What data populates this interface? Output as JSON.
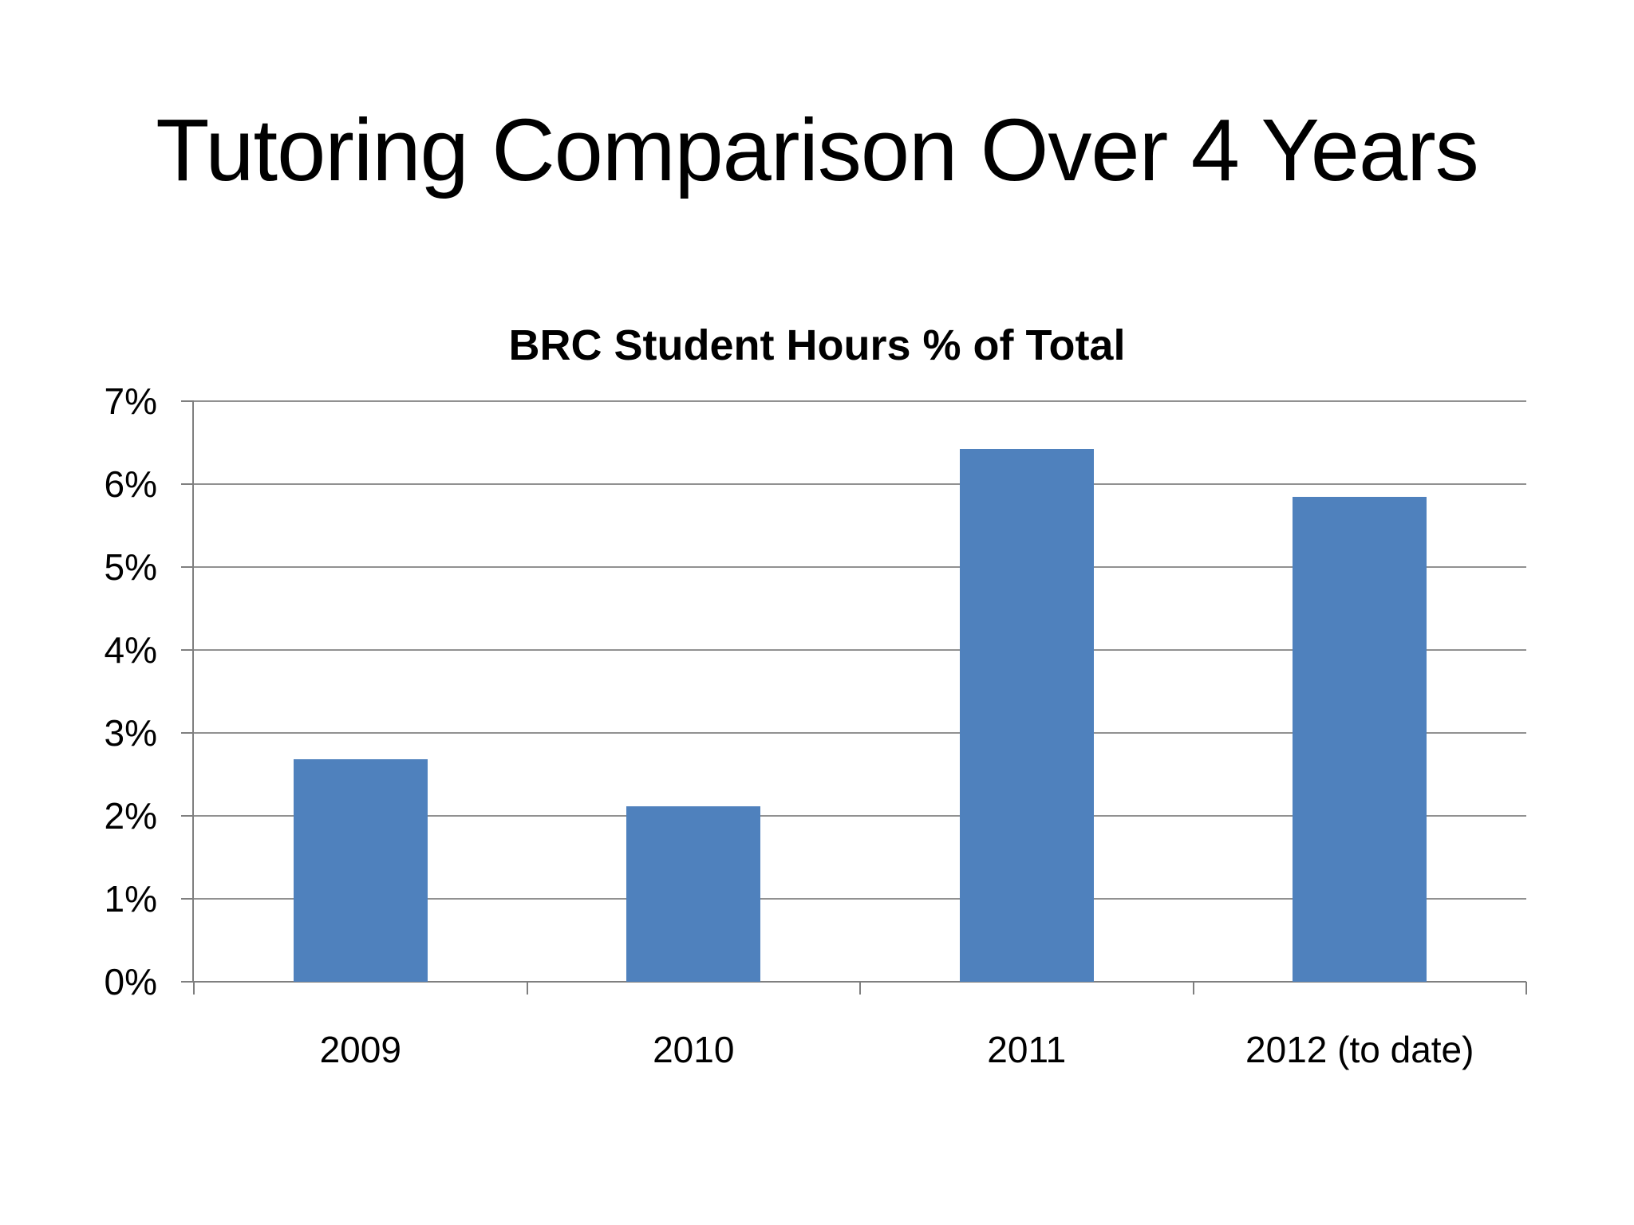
{
  "slide": {
    "title": "Tutoring Comparison Over 4 Years"
  },
  "chart_data": {
    "type": "bar",
    "title": "BRC Student Hours % of Total",
    "categories": [
      "2009",
      "2010",
      "2011",
      "2012 (to date)"
    ],
    "values": [
      2.68,
      2.12,
      6.42,
      5.85
    ],
    "value_unit": "%",
    "xlabel": "",
    "ylabel": "",
    "ylim": [
      0,
      7
    ],
    "ytick_step": 1,
    "ytick_labels": [
      "0%",
      "1%",
      "2%",
      "3%",
      "4%",
      "5%",
      "6%",
      "7%"
    ],
    "grid": "horizontal",
    "legend": "none",
    "bar_color": "#4F81BD",
    "gridline_color": "#919191",
    "axis_color": "#7F7F7F",
    "text_color": "#000000",
    "background_color": "#FFFFFF"
  }
}
